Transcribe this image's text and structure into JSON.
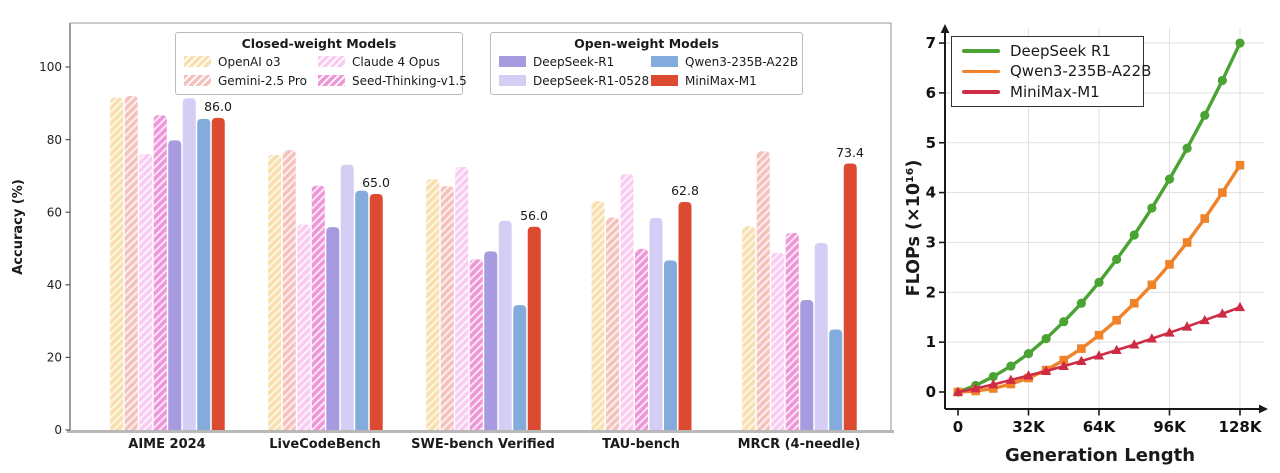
{
  "chart_data": [
    {
      "type": "bar",
      "ylabel": "Accuracy (%)",
      "ylim": [
        0,
        112
      ],
      "yticks": [
        0,
        20,
        40,
        60,
        80,
        100
      ],
      "grid": false,
      "categories": [
        "AIME 2024",
        "LiveCodeBench",
        "SWE-bench Verified",
        "TAU-bench",
        "MRCR (4-needle)"
      ],
      "legend_groups": {
        "closed_title": "Closed-weight Models",
        "open_title": "Open-weight Models"
      },
      "series": [
        {
          "name": "OpenAI o3",
          "group": "closed-weight",
          "hatch": true,
          "color": "#F8DFAC",
          "values": [
            91.6,
            75.8,
            69.1,
            63.0,
            56.1
          ]
        },
        {
          "name": "Gemini-2.5 Pro",
          "group": "closed-weight",
          "hatch": true,
          "color": "#F5C1BC",
          "values": [
            92.0,
            77.1,
            67.2,
            58.5,
            76.8
          ]
        },
        {
          "name": "Claude 4 Opus",
          "group": "closed-weight",
          "hatch": true,
          "color": "#F9CBF1",
          "values": [
            76.0,
            56.6,
            72.5,
            70.5,
            48.8
          ]
        },
        {
          "name": "Seed-Thinking-v1.5",
          "group": "closed-weight",
          "hatch": true,
          "color": "#EE96D8",
          "values": [
            86.7,
            67.3,
            47.0,
            49.9,
            54.3
          ]
        },
        {
          "name": "DeepSeek-R1",
          "group": "open-weight",
          "hatch": false,
          "color": "#A89ADF",
          "values": [
            79.8,
            55.9,
            49.2,
            null,
            35.8
          ]
        },
        {
          "name": "DeepSeek-R1-0528",
          "group": "open-weight",
          "hatch": false,
          "color": "#D6CDF5",
          "values": [
            91.4,
            73.1,
            57.6,
            58.4,
            51.5
          ]
        },
        {
          "name": "Qwen3-235B-A22B",
          "group": "open-weight",
          "hatch": false,
          "color": "#83ABDC",
          "values": [
            85.7,
            65.9,
            34.4,
            46.7,
            27.7
          ]
        },
        {
          "name": "MiniMax-M1",
          "group": "open-weight",
          "hatch": false,
          "color": "#DD4A32",
          "values": [
            86.0,
            65.0,
            56.0,
            62.8,
            73.4
          ]
        }
      ],
      "minimax_value_labels": [
        "86.0",
        "65.0",
        "56.0",
        "62.8",
        "73.4"
      ]
    },
    {
      "type": "line",
      "xlabel": "Generation Length",
      "ylabel": "FLOPs (×10¹⁶)",
      "xtick_labels": [
        "0",
        "32K",
        "64K",
        "96K",
        "128K"
      ],
      "xtick_values": [
        0,
        32,
        64,
        96,
        128
      ],
      "yticks": [
        0,
        1,
        2,
        3,
        4,
        5,
        6,
        7
      ],
      "ylim": [
        0,
        7.3
      ],
      "grid": true,
      "legend_position": "top-left",
      "x": [
        0,
        8,
        16,
        24,
        32,
        40,
        48,
        56,
        64,
        72,
        80,
        88,
        96,
        104,
        112,
        120,
        128
      ],
      "series": [
        {
          "name": "DeepSeek R1",
          "color": "#4AA333",
          "marker": "circle",
          "values": [
            0,
            0.13,
            0.31,
            0.52,
            0.77,
            1.07,
            1.41,
            1.78,
            2.2,
            2.66,
            3.15,
            3.69,
            4.27,
            4.89,
            5.55,
            6.25,
            7.0
          ]
        },
        {
          "name": "Qwen3-235B-A22B",
          "color": "#F0822A",
          "marker": "square",
          "values": [
            0,
            0.02,
            0.07,
            0.16,
            0.28,
            0.44,
            0.64,
            0.87,
            1.14,
            1.44,
            1.78,
            2.15,
            2.56,
            3.0,
            3.48,
            4.0,
            4.55
          ]
        },
        {
          "name": "MiniMax-M1",
          "color": "#CE2B45",
          "marker": "triangle",
          "values": [
            0,
            0.07,
            0.15,
            0.24,
            0.33,
            0.42,
            0.52,
            0.62,
            0.73,
            0.84,
            0.95,
            1.07,
            1.19,
            1.31,
            1.44,
            1.57,
            1.7
          ]
        }
      ]
    }
  ]
}
